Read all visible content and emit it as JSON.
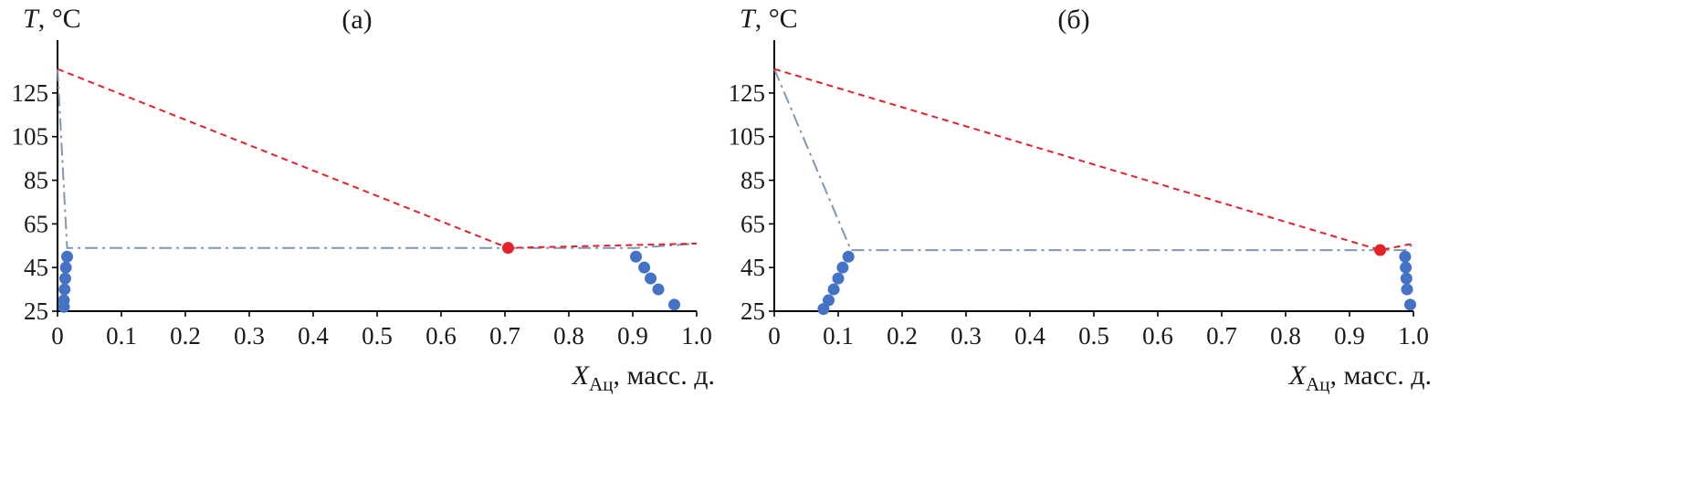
{
  "chart_data": [
    {
      "type": "scatter",
      "panel_label": "(а)",
      "ylabel": "T",
      "ylabel_unit": ", °C",
      "xlabel": "X",
      "xlabel_sub": "Ац",
      "xlabel_unit": ", масс. д.",
      "xlim": [
        0,
        1.0
      ],
      "ylim": [
        25,
        140
      ],
      "xticks": [
        0,
        0.1,
        0.2,
        0.3,
        0.4,
        0.5,
        0.6,
        0.7,
        0.8,
        0.9,
        1.0
      ],
      "xtick_labels": [
        "0",
        "0.1",
        "0.2",
        "0.3",
        "0.4",
        "0.5",
        "0.6",
        "0.7",
        "0.8",
        "0.9",
        "1.0"
      ],
      "yticks": [
        25,
        45,
        65,
        85,
        105,
        125
      ],
      "ytick_labels": [
        "25",
        "45",
        "65",
        "85",
        "105",
        "125"
      ],
      "grid": false,
      "colors": {
        "points": "#4472C4",
        "dashed": "#E8202A",
        "dashdot": "#7F97B8",
        "eutectic": "#E8202A"
      },
      "points_left": [
        {
          "x": 0.01,
          "y": 27
        },
        {
          "x": 0.01,
          "y": 30
        },
        {
          "x": 0.011,
          "y": 35
        },
        {
          "x": 0.012,
          "y": 40
        },
        {
          "x": 0.013,
          "y": 45
        },
        {
          "x": 0.015,
          "y": 50
        }
      ],
      "points_right": [
        {
          "x": 0.965,
          "y": 28
        },
        {
          "x": 0.94,
          "y": 35
        },
        {
          "x": 0.928,
          "y": 40
        },
        {
          "x": 0.918,
          "y": 45
        },
        {
          "x": 0.905,
          "y": 50
        }
      ],
      "dashed_line": [
        {
          "x": 0,
          "y": 136
        },
        {
          "x": 0.705,
          "y": 54
        },
        {
          "x": 1.0,
          "y": 56
        }
      ],
      "dashdot_line": [
        {
          "x": 0,
          "y": 136
        },
        {
          "x": 0.015,
          "y": 54
        },
        {
          "x": 0.905,
          "y": 54
        },
        {
          "x": 1.0,
          "y": 56
        }
      ],
      "eutectic_point": {
        "x": 0.705,
        "y": 54
      }
    },
    {
      "type": "scatter",
      "panel_label": "(б)",
      "ylabel": "T",
      "ylabel_unit": ", °C",
      "xlabel": "X",
      "xlabel_sub": "Ац",
      "xlabel_unit": ", масс. д.",
      "xlim": [
        0,
        1.0
      ],
      "ylim": [
        25,
        140
      ],
      "xticks": [
        0,
        0.1,
        0.2,
        0.3,
        0.4,
        0.5,
        0.6,
        0.7,
        0.8,
        0.9,
        1.0
      ],
      "xtick_labels": [
        "0",
        "0.1",
        "0.2",
        "0.3",
        "0.4",
        "0.5",
        "0.6",
        "0.7",
        "0.8",
        "0.9",
        "1.0"
      ],
      "yticks": [
        25,
        45,
        65,
        85,
        105,
        125
      ],
      "ytick_labels": [
        "25",
        "45",
        "65",
        "85",
        "105",
        "125"
      ],
      "grid": false,
      "colors": {
        "points": "#4472C4",
        "dashed": "#E8202A",
        "dashdot": "#7F97B8",
        "eutectic": "#E8202A"
      },
      "points_left": [
        {
          "x": 0.077,
          "y": 26
        },
        {
          "x": 0.085,
          "y": 30
        },
        {
          "x": 0.093,
          "y": 35
        },
        {
          "x": 0.1,
          "y": 40
        },
        {
          "x": 0.107,
          "y": 45
        },
        {
          "x": 0.116,
          "y": 50
        }
      ],
      "points_right": [
        {
          "x": 0.995,
          "y": 28
        },
        {
          "x": 0.99,
          "y": 35
        },
        {
          "x": 0.989,
          "y": 40
        },
        {
          "x": 0.988,
          "y": 45
        },
        {
          "x": 0.987,
          "y": 50
        }
      ],
      "dashed_line": [
        {
          "x": 0,
          "y": 136
        },
        {
          "x": 0.948,
          "y": 53
        },
        {
          "x": 1.0,
          "y": 56
        }
      ],
      "dashdot_line": [
        {
          "x": 0,
          "y": 136
        },
        {
          "x": 0.12,
          "y": 53
        },
        {
          "x": 0.987,
          "y": 53
        },
        {
          "x": 1.0,
          "y": 56
        }
      ],
      "eutectic_point": {
        "x": 0.948,
        "y": 53
      }
    }
  ]
}
